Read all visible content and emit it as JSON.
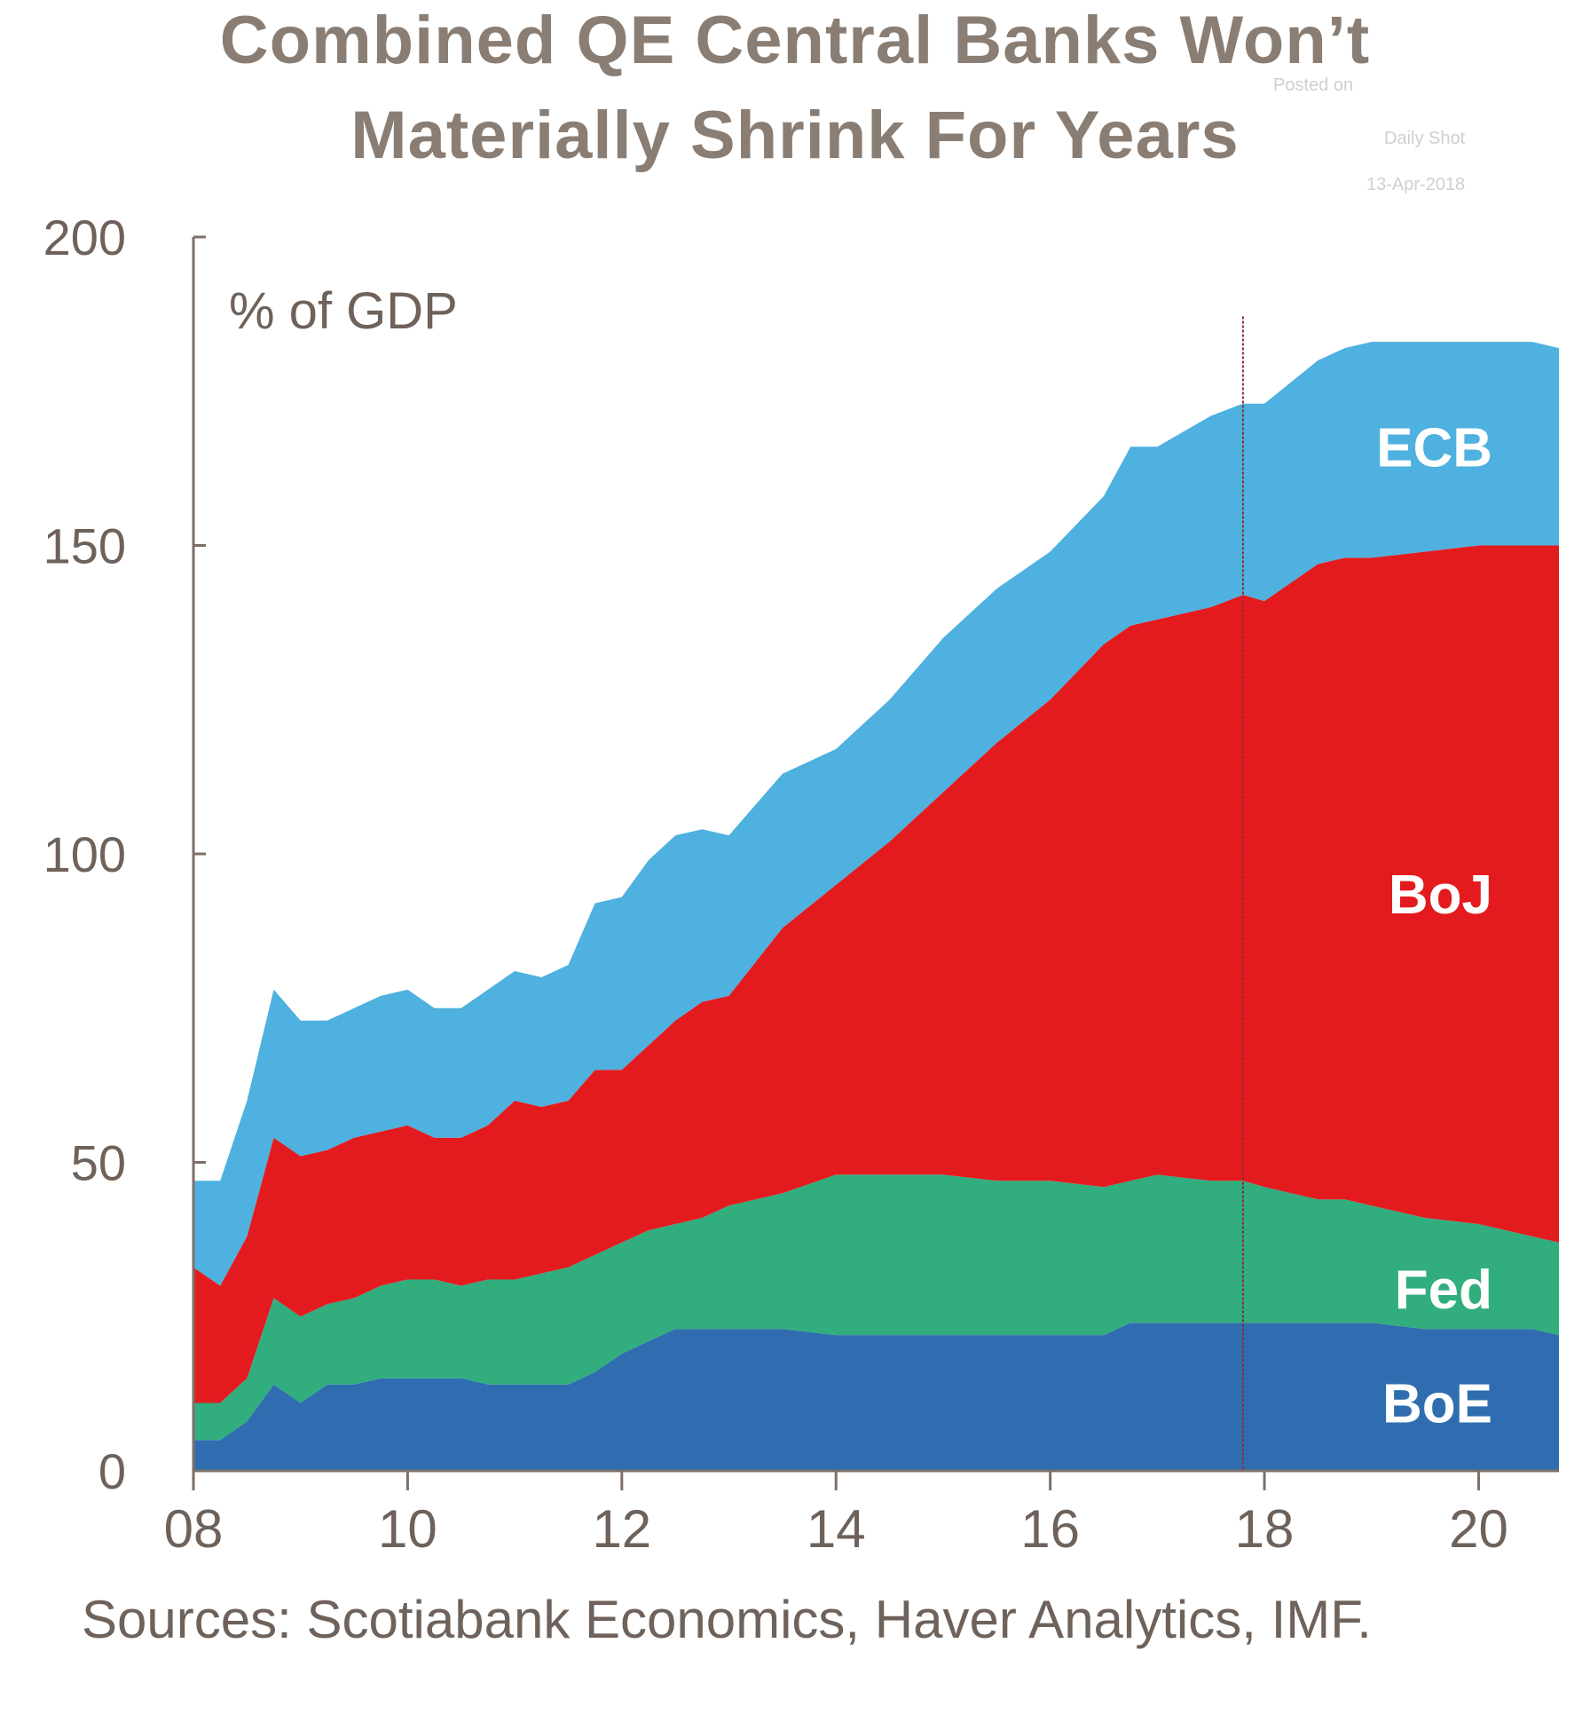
{
  "title_line1": "Combined QE Central Banks Won’t",
  "title_line2": "Materially Shrink For Years",
  "posted_note": {
    "line1": "Posted on",
    "line2": "Daily Shot",
    "line3": "13-Apr-2018"
  },
  "source": "Sources: Scotiabank Economics, Haver Analytics, IMF.",
  "chart_data": {
    "type": "area",
    "stacked": true,
    "unit_label": "% of GDP",
    "xlim": [
      2008.0,
      2020.75
    ],
    "ylim": [
      0,
      200
    ],
    "x_ticks": [
      2008,
      2010,
      2012,
      2014,
      2016,
      2018,
      2020
    ],
    "x_tick_labels": [
      "08",
      "10",
      "12",
      "14",
      "16",
      "18",
      "20"
    ],
    "y_ticks": [
      0,
      50,
      100,
      150,
      200
    ],
    "y_tick_labels": [
      "0",
      "50",
      "100",
      "150",
      "200"
    ],
    "vertical_marker_x": 2017.8,
    "colors": {
      "BoE": "#2f6db0",
      "Fed": "#31ad7e",
      "BoJ": "#e41b1e",
      "ECB": "#4eb1df"
    },
    "x": [
      2008.0,
      2008.25,
      2008.5,
      2008.75,
      2009.0,
      2009.25,
      2009.5,
      2009.75,
      2010.0,
      2010.25,
      2010.5,
      2010.75,
      2011.0,
      2011.25,
      2011.5,
      2011.75,
      2012.0,
      2012.25,
      2012.5,
      2012.75,
      2013.0,
      2013.5,
      2014.0,
      2014.5,
      2015.0,
      2015.5,
      2016.0,
      2016.5,
      2016.75,
      2017.0,
      2017.5,
      2017.8,
      2018.0,
      2018.5,
      2018.75,
      2019.0,
      2019.5,
      2020.0,
      2020.5,
      2020.75
    ],
    "series": [
      {
        "name": "BoE",
        "values": [
          5,
          5,
          8,
          14,
          11,
          14,
          14,
          15,
          15,
          15,
          15,
          14,
          14,
          14,
          14,
          16,
          19,
          21,
          23,
          23,
          23,
          23,
          22,
          22,
          22,
          22,
          22,
          22,
          24,
          24,
          24,
          24,
          24,
          24,
          24,
          24,
          23,
          23,
          23,
          22
        ]
      },
      {
        "name": "Fed",
        "values": [
          6,
          6,
          7,
          14,
          14,
          13,
          14,
          15,
          16,
          16,
          15,
          17,
          17,
          18,
          19,
          19,
          18,
          18,
          17,
          18,
          20,
          22,
          26,
          26,
          26,
          25,
          25,
          24,
          23,
          24,
          23,
          23,
          22,
          20,
          20,
          19,
          18,
          17,
          15,
          15
        ]
      },
      {
        "name": "BoJ",
        "values": [
          22,
          19,
          23,
          26,
          26,
          25,
          26,
          25,
          25,
          23,
          24,
          25,
          29,
          27,
          27,
          30,
          28,
          30,
          33,
          35,
          34,
          43,
          47,
          54,
          62,
          71,
          78,
          88,
          90,
          90,
          93,
          95,
          95,
          103,
          104,
          105,
          108,
          110,
          112,
          113
        ]
      },
      {
        "name": "ECB",
        "values": [
          14,
          17,
          22,
          24,
          22,
          21,
          21,
          22,
          22,
          21,
          21,
          22,
          21,
          21,
          22,
          27,
          28,
          30,
          30,
          28,
          26,
          25,
          22,
          23,
          25,
          25,
          24,
          24,
          29,
          28,
          31,
          31,
          32,
          33,
          34,
          35,
          34,
          33,
          33,
          32
        ]
      }
    ]
  }
}
